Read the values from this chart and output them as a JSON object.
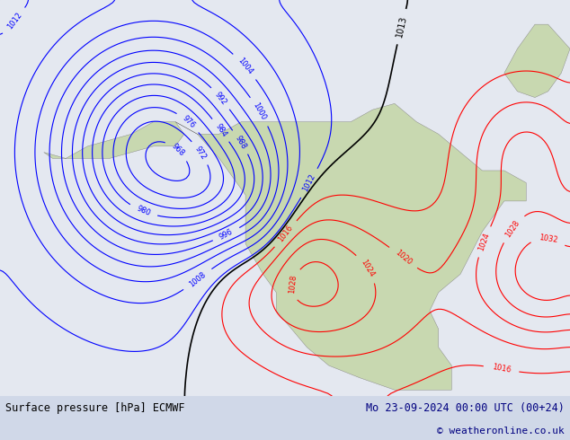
{
  "title_left": "Surface pressure [hPa] ECMWF",
  "title_right": "Mo 23-09-2024 00:00 UTC (00+24)",
  "copyright": "© weatheronline.co.uk",
  "bg_color": "#d0d8e8",
  "map_bg": "#e8e8e8",
  "land_color": "#c8d8b0",
  "font_size_labels": 9,
  "font_size_bottom": 9
}
